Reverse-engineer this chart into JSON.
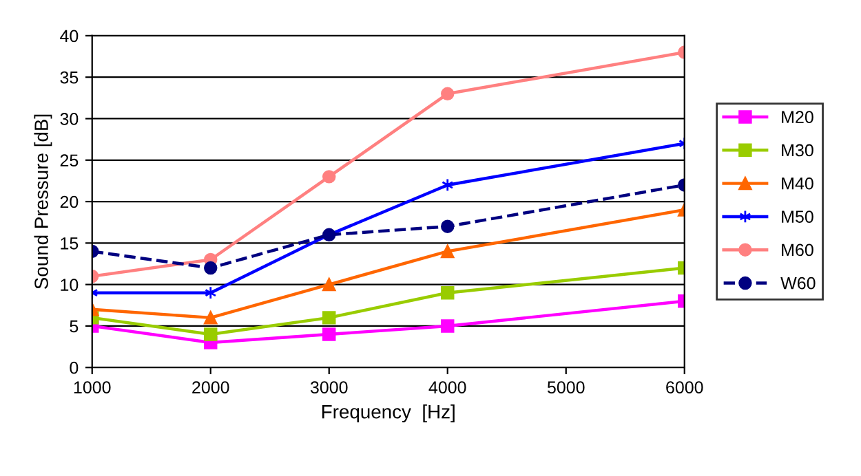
{
  "chart_data": {
    "type": "line",
    "xlabel": "Frequency  [Hz]",
    "ylabel": "Sound Pressure [dB]",
    "x": [
      1000,
      2000,
      3000,
      4000,
      6000
    ],
    "xlim": [
      1000,
      6000
    ],
    "xticks": [
      1000,
      2000,
      3000,
      4000,
      5000,
      6000
    ],
    "ylim": [
      0,
      40
    ],
    "yticks": [
      0,
      5,
      10,
      15,
      20,
      25,
      30,
      35,
      40
    ],
    "grid": "y",
    "legend": "right",
    "series": [
      {
        "name": "M20",
        "color": "#ff00ff",
        "marker": "square",
        "line_style": "solid",
        "values": [
          5,
          3,
          4,
          5,
          8
        ]
      },
      {
        "name": "M30",
        "color": "#99cc00",
        "marker": "square",
        "line_style": "solid",
        "values": [
          6,
          4,
          6,
          9,
          12
        ]
      },
      {
        "name": "M40",
        "color": "#ff6600",
        "marker": "triangle",
        "line_style": "solid",
        "values": [
          7,
          6,
          10,
          14,
          19
        ]
      },
      {
        "name": "M50",
        "color": "#0000ff",
        "marker": "cross",
        "line_style": "solid",
        "values": [
          9,
          9,
          16,
          22,
          27
        ]
      },
      {
        "name": "M60",
        "color": "#ff8080",
        "marker": "circle",
        "line_style": "solid",
        "values": [
          11,
          13,
          23,
          33,
          38
        ]
      },
      {
        "name": "W60",
        "color": "#000080",
        "marker": "circle",
        "line_style": "dashed",
        "values": [
          14,
          12,
          16,
          17,
          22
        ]
      }
    ]
  }
}
